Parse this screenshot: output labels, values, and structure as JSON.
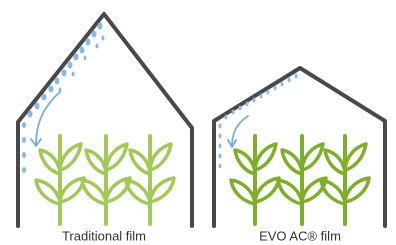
{
  "panels": [
    {
      "label": "Traditional film"
    },
    {
      "label": "EVO AC® film"
    }
  ]
}
